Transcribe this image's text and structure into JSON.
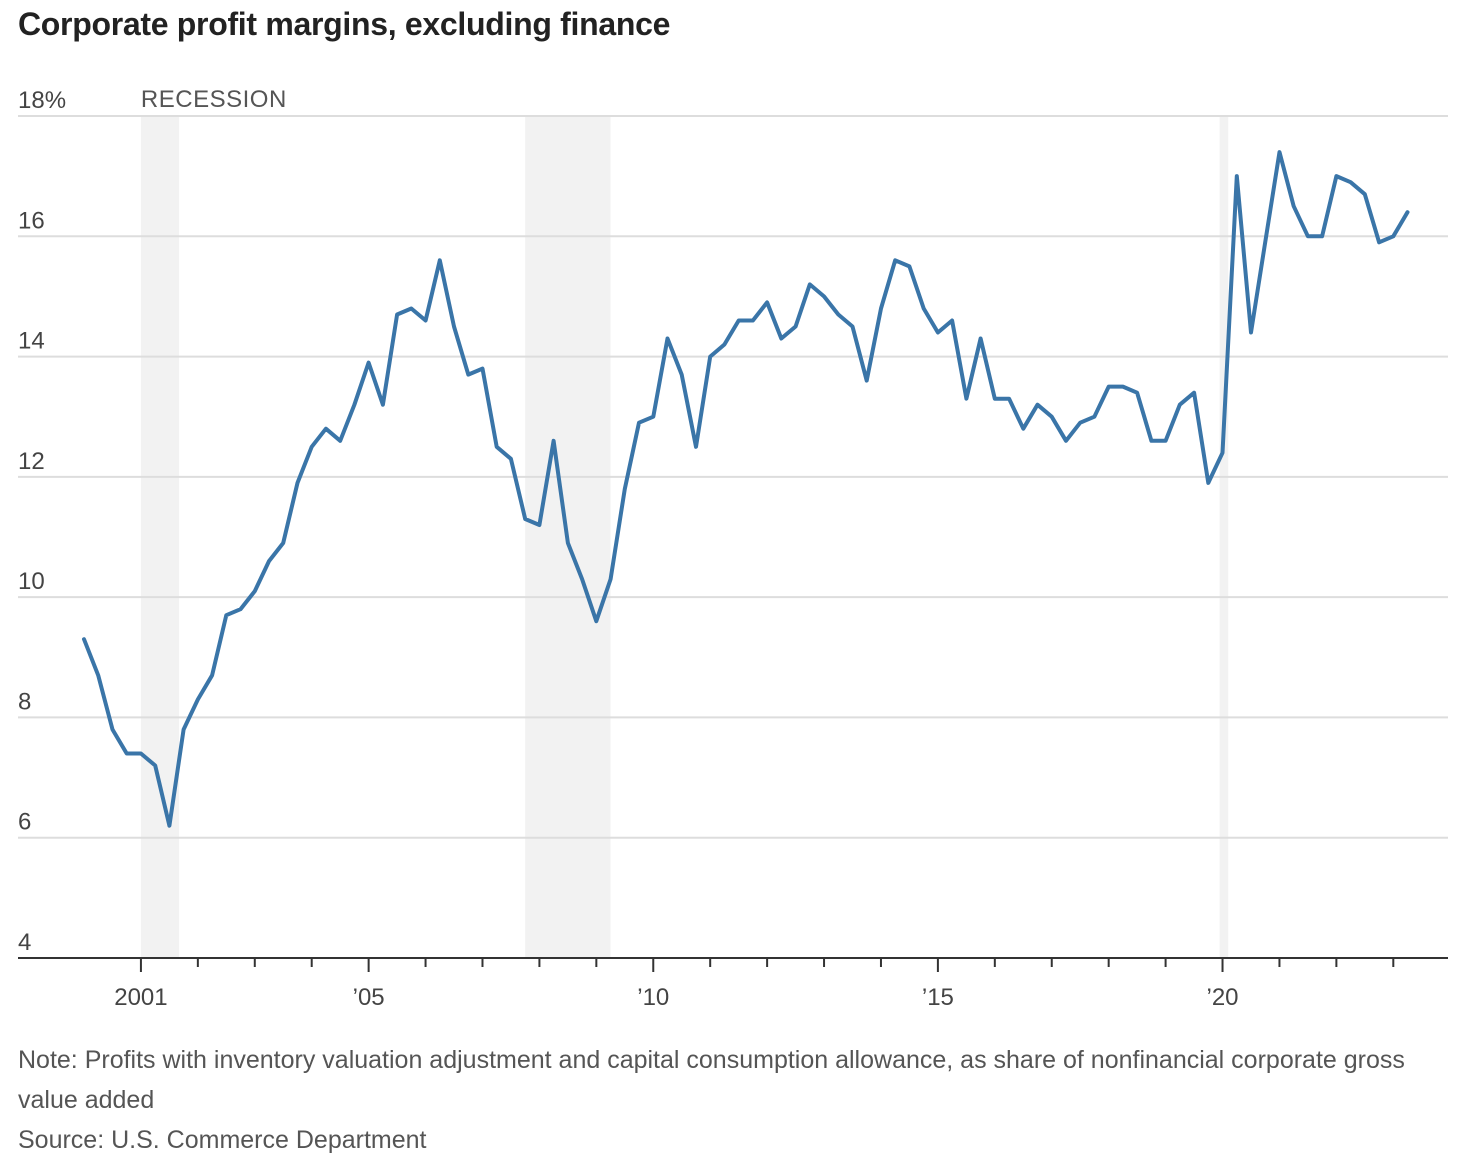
{
  "title": "Corporate profit margins, excluding finance",
  "note": "Note: Profits with inventory valuation adjustment and capital consumption allowance, as share of nonfinancial corporate gross value added",
  "source": "Source: U.S. Commerce Department",
  "colors": {
    "line": "#3a75a8",
    "recession": "#f2f2f2",
    "grid": "#dddddd",
    "axis": "#333333"
  },
  "chart_data": {
    "type": "line",
    "title": "Corporate profit margins, excluding finance",
    "xlabel": "",
    "ylabel": "",
    "y_unit": "%",
    "ylim": [
      4,
      18
    ],
    "yticks": [
      18,
      16,
      14,
      12,
      10,
      8,
      6,
      4
    ],
    "ytick_labels": [
      "18%",
      "16",
      "14",
      "12",
      "10",
      "8",
      "6",
      "4"
    ],
    "xlim": [
      2000.0,
      2023.75
    ],
    "xticks": [
      2001,
      2005,
      2010,
      2015,
      2020
    ],
    "xtick_labels": [
      "2001",
      "’05",
      "’10",
      "’15",
      "’20"
    ],
    "minor_xticks": [
      2002,
      2003,
      2004,
      2006,
      2007,
      2008,
      2009,
      2011,
      2012,
      2013,
      2014,
      2016,
      2017,
      2018,
      2019,
      2021,
      2022,
      2023
    ],
    "grid": true,
    "recession_label": "RECESSION",
    "recessions": [
      [
        2001.0,
        2001.67
      ],
      [
        2007.75,
        2009.25
      ],
      [
        2019.95,
        2020.1
      ]
    ],
    "series": [
      {
        "values": [
          [
            2000.0,
            9.3
          ],
          [
            2000.25,
            8.7
          ],
          [
            2000.5,
            7.8
          ],
          [
            2000.75,
            7.4
          ],
          [
            2001.0,
            7.4
          ],
          [
            2001.25,
            7.2
          ],
          [
            2001.5,
            6.2
          ],
          [
            2001.75,
            7.8
          ],
          [
            2002.0,
            8.3
          ],
          [
            2002.25,
            8.7
          ],
          [
            2002.5,
            9.7
          ],
          [
            2002.75,
            9.8
          ],
          [
            2003.0,
            10.1
          ],
          [
            2003.25,
            10.6
          ],
          [
            2003.5,
            10.9
          ],
          [
            2003.75,
            11.9
          ],
          [
            2004.0,
            12.5
          ],
          [
            2004.25,
            12.8
          ],
          [
            2004.5,
            12.6
          ],
          [
            2004.75,
            13.2
          ],
          [
            2005.0,
            13.9
          ],
          [
            2005.25,
            13.2
          ],
          [
            2005.5,
            14.7
          ],
          [
            2005.75,
            14.8
          ],
          [
            2006.0,
            14.6
          ],
          [
            2006.25,
            15.6
          ],
          [
            2006.5,
            14.5
          ],
          [
            2006.75,
            13.7
          ],
          [
            2007.0,
            13.8
          ],
          [
            2007.25,
            12.5
          ],
          [
            2007.5,
            12.3
          ],
          [
            2007.75,
            11.3
          ],
          [
            2008.0,
            11.2
          ],
          [
            2008.25,
            12.6
          ],
          [
            2008.5,
            10.9
          ],
          [
            2008.75,
            10.3
          ],
          [
            2009.0,
            9.6
          ],
          [
            2009.25,
            10.3
          ],
          [
            2009.5,
            11.8
          ],
          [
            2009.75,
            12.9
          ],
          [
            2010.0,
            13.0
          ],
          [
            2010.25,
            14.3
          ],
          [
            2010.5,
            13.7
          ],
          [
            2010.75,
            12.5
          ],
          [
            2011.0,
            14.0
          ],
          [
            2011.25,
            14.2
          ],
          [
            2011.5,
            14.6
          ],
          [
            2011.75,
            14.6
          ],
          [
            2012.0,
            14.9
          ],
          [
            2012.25,
            14.3
          ],
          [
            2012.5,
            14.5
          ],
          [
            2012.75,
            15.2
          ],
          [
            2013.0,
            15.0
          ],
          [
            2013.25,
            14.7
          ],
          [
            2013.5,
            14.5
          ],
          [
            2013.75,
            13.6
          ],
          [
            2014.0,
            14.8
          ],
          [
            2014.25,
            15.6
          ],
          [
            2014.5,
            15.5
          ],
          [
            2014.75,
            14.8
          ],
          [
            2015.0,
            14.4
          ],
          [
            2015.25,
            14.6
          ],
          [
            2015.5,
            13.3
          ],
          [
            2015.75,
            14.3
          ],
          [
            2016.0,
            13.3
          ],
          [
            2016.25,
            13.3
          ],
          [
            2016.5,
            12.8
          ],
          [
            2016.75,
            13.2
          ],
          [
            2017.0,
            13.0
          ],
          [
            2017.25,
            12.6
          ],
          [
            2017.5,
            12.9
          ],
          [
            2017.75,
            13.0
          ],
          [
            2018.0,
            13.5
          ],
          [
            2018.25,
            13.5
          ],
          [
            2018.5,
            13.4
          ],
          [
            2018.75,
            12.6
          ],
          [
            2019.0,
            12.6
          ],
          [
            2019.25,
            13.2
          ],
          [
            2019.5,
            13.4
          ],
          [
            2019.75,
            11.9
          ],
          [
            2020.0,
            12.4
          ],
          [
            2020.25,
            17.0
          ],
          [
            2020.5,
            14.4
          ],
          [
            2020.75,
            15.9
          ],
          [
            2021.0,
            17.4
          ],
          [
            2021.25,
            16.5
          ],
          [
            2021.5,
            16.0
          ],
          [
            2021.75,
            16.0
          ],
          [
            2022.0,
            17.0
          ],
          [
            2022.25,
            16.9
          ],
          [
            2022.5,
            16.7
          ],
          [
            2022.75,
            15.9
          ],
          [
            2023.0,
            16.0
          ],
          [
            2023.25,
            16.4
          ]
        ]
      }
    ]
  }
}
